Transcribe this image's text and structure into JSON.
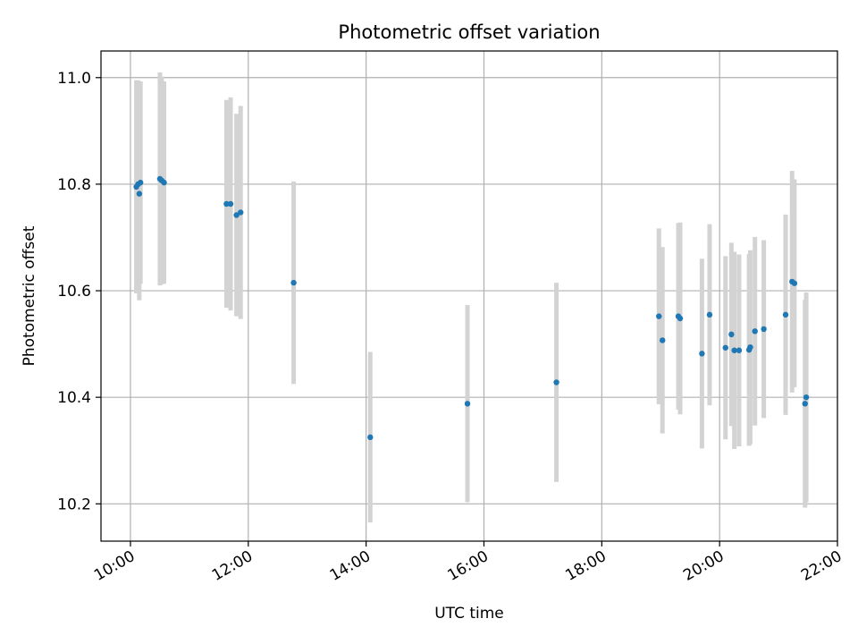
{
  "chart_data": {
    "type": "scatter",
    "title": "Photometric offset variation",
    "xlabel": "UTC time",
    "ylabel": "Photometric offset",
    "x_unit": "hours (UTC)",
    "xlim": [
      9.5,
      22.0
    ],
    "ylim": [
      10.13,
      11.05
    ],
    "grid": true,
    "x_ticks": [
      {
        "value": 10,
        "label": "10:00"
      },
      {
        "value": 12,
        "label": "12:00"
      },
      {
        "value": 14,
        "label": "14:00"
      },
      {
        "value": 16,
        "label": "16:00"
      },
      {
        "value": 18,
        "label": "18:00"
      },
      {
        "value": 20,
        "label": "20:00"
      },
      {
        "value": 22,
        "label": "22:00"
      }
    ],
    "y_ticks": [
      {
        "value": 10.2,
        "label": "10.2"
      },
      {
        "value": 10.4,
        "label": "10.4"
      },
      {
        "value": 10.6,
        "label": "10.6"
      },
      {
        "value": 10.8,
        "label": "10.8"
      },
      {
        "value": 11.0,
        "label": "11.0"
      }
    ],
    "colors": {
      "point": "#1f77b4",
      "errorbar": "#d3d3d3",
      "grid": "#b0b0b0"
    },
    "points": [
      {
        "x": 10.1,
        "y": 10.795,
        "err": 0.2
      },
      {
        "x": 10.13,
        "y": 10.8,
        "err": 0.195
      },
      {
        "x": 10.15,
        "y": 10.782,
        "err": 0.2
      },
      {
        "x": 10.17,
        "y": 10.803,
        "err": 0.19
      },
      {
        "x": 10.5,
        "y": 10.81,
        "err": 0.2
      },
      {
        "x": 10.53,
        "y": 10.807,
        "err": 0.195
      },
      {
        "x": 10.57,
        "y": 10.803,
        "err": 0.19
      },
      {
        "x": 11.63,
        "y": 10.763,
        "err": 0.195
      },
      {
        "x": 11.7,
        "y": 10.763,
        "err": 0.2
      },
      {
        "x": 11.8,
        "y": 10.742,
        "err": 0.19
      },
      {
        "x": 11.87,
        "y": 10.747,
        "err": 0.2
      },
      {
        "x": 12.77,
        "y": 10.615,
        "err": 0.19
      },
      {
        "x": 14.07,
        "y": 10.325,
        "err": 0.16
      },
      {
        "x": 15.72,
        "y": 10.388,
        "err": 0.185
      },
      {
        "x": 17.23,
        "y": 10.428,
        "err": 0.187
      },
      {
        "x": 18.97,
        "y": 10.552,
        "err": 0.165
      },
      {
        "x": 19.03,
        "y": 10.507,
        "err": 0.175
      },
      {
        "x": 19.3,
        "y": 10.552,
        "err": 0.175
      },
      {
        "x": 19.33,
        "y": 10.548,
        "err": 0.18
      },
      {
        "x": 19.7,
        "y": 10.482,
        "err": 0.178
      },
      {
        "x": 19.83,
        "y": 10.555,
        "err": 0.17
      },
      {
        "x": 20.1,
        "y": 10.493,
        "err": 0.172
      },
      {
        "x": 20.2,
        "y": 10.518,
        "err": 0.172
      },
      {
        "x": 20.25,
        "y": 10.488,
        "err": 0.185
      },
      {
        "x": 20.33,
        "y": 10.488,
        "err": 0.18
      },
      {
        "x": 20.5,
        "y": 10.489,
        "err": 0.18
      },
      {
        "x": 20.52,
        "y": 10.494,
        "err": 0.182
      },
      {
        "x": 20.6,
        "y": 10.524,
        "err": 0.177
      },
      {
        "x": 20.75,
        "y": 10.528,
        "err": 0.167
      },
      {
        "x": 21.12,
        "y": 10.555,
        "err": 0.188
      },
      {
        "x": 21.23,
        "y": 10.617,
        "err": 0.208
      },
      {
        "x": 21.27,
        "y": 10.614,
        "err": 0.195
      },
      {
        "x": 21.45,
        "y": 10.388,
        "err": 0.195
      },
      {
        "x": 21.47,
        "y": 10.4,
        "err": 0.197
      }
    ]
  }
}
